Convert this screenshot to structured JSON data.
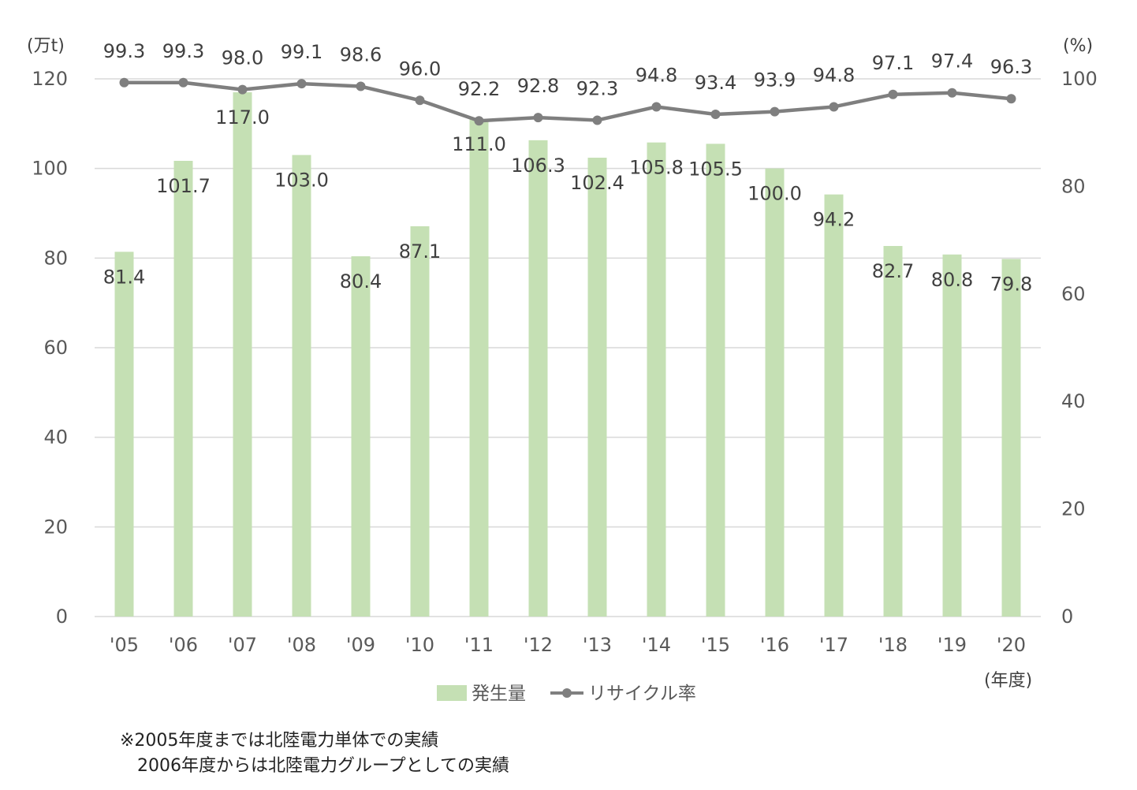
{
  "chart_data": {
    "type": "bar",
    "categories": [
      "'05",
      "'06",
      "'07",
      "'08",
      "'09",
      "'10",
      "'11",
      "'12",
      "'13",
      "'14",
      "'15",
      "'16",
      "'17",
      "'18",
      "'19",
      "'20"
    ],
    "series": [
      {
        "name": "発生量",
        "type": "bar",
        "axis": "left",
        "color": "#c5e0b4",
        "values": [
          81.4,
          101.7,
          117.0,
          103.0,
          80.4,
          87.1,
          111.0,
          106.3,
          102.4,
          105.8,
          105.5,
          100.0,
          94.2,
          82.7,
          80.8,
          79.8
        ],
        "labels": [
          "81.4",
          "101.7",
          "117.0",
          "103.0",
          "80.4",
          "87.1",
          "111.0",
          "106.3",
          "102.4",
          "105.8",
          "105.5",
          "100.0",
          "94.2",
          "82.7",
          "80.8",
          "79.8"
        ]
      },
      {
        "name": "リサイクル率",
        "type": "line",
        "axis": "right",
        "color": "#7f7f7f",
        "values": [
          99.3,
          99.3,
          98.0,
          99.1,
          98.6,
          96.0,
          92.2,
          92.8,
          92.3,
          94.8,
          93.4,
          93.9,
          94.8,
          97.1,
          97.4,
          96.3
        ],
        "labels": [
          "99.3",
          "99.3",
          "98.0",
          "99.1",
          "98.6",
          "96.0",
          "92.2",
          "92.8",
          "92.3",
          "94.8",
          "93.4",
          "93.9",
          "94.8",
          "97.1",
          "97.4",
          "96.3"
        ]
      }
    ],
    "y_left": {
      "label": "(万t)",
      "ylim": [
        0,
        120
      ],
      "ticks": [
        "0",
        "20",
        "40",
        "60",
        "80",
        "100",
        "120"
      ]
    },
    "y_right": {
      "label": "(%)",
      "ylim": [
        0,
        100
      ],
      "ticks": [
        "0",
        "20",
        "40",
        "60",
        "80",
        "100"
      ]
    },
    "xlabel": "(年度)",
    "grid": true,
    "legend": "bottom-center"
  },
  "notes": [
    "※2005年度までは北陸電力単体での実績",
    "　2006年度からは北陸電力グループとしての実績"
  ]
}
